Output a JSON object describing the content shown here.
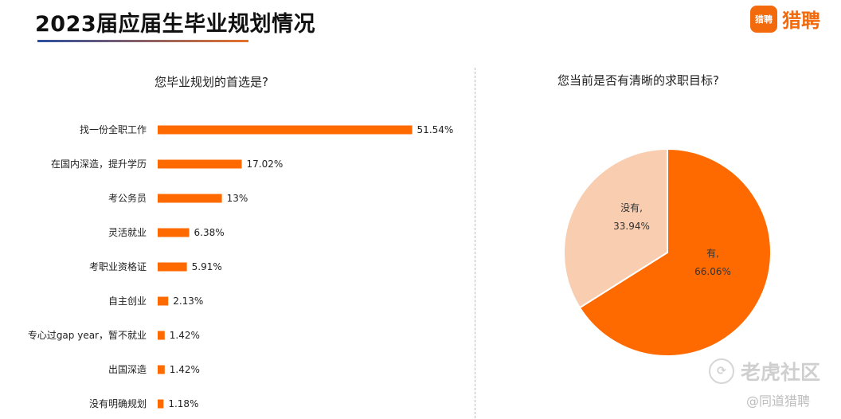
{
  "header": {
    "title": "2023届应届生毕业规划情况",
    "logo_badge": "猎聘",
    "logo_text": "猎聘"
  },
  "watermark": {
    "site": "老虎社区",
    "source": "@同道猎聘"
  },
  "colors": {
    "bar": "#ff6a00",
    "pie_yes": "#ff6a00",
    "pie_no": "#f8cdb0",
    "brand": "#f26a0b"
  },
  "chart_data": [
    {
      "type": "bar",
      "orientation": "horizontal",
      "title": "您毕业规划的首选是?",
      "categories": [
        "找一份全职工作",
        "在国内深造，提升学历",
        "考公务员",
        "灵活就业",
        "考职业资格证",
        "自主创业",
        "专心过gap year，暂不就业",
        "出国深造",
        "没有明确规划"
      ],
      "values": [
        51.54,
        17.02,
        13,
        6.38,
        5.91,
        2.13,
        1.42,
        1.42,
        1.18
      ],
      "value_labels": [
        "51.54%",
        "17.02%",
        "13%",
        "6.38%",
        "5.91%",
        "2.13%",
        "1.42%",
        "1.42%",
        "1.18%"
      ],
      "xlim": [
        0,
        60
      ],
      "grid": false
    },
    {
      "type": "pie",
      "title": "您当前是否有清晰的求职目标?",
      "slices": [
        {
          "name": "有",
          "value": 66.06,
          "label_name": "有,",
          "label_value": "66.06%"
        },
        {
          "name": "没有",
          "value": 33.94,
          "label_name": "没有,",
          "label_value": "33.94%"
        }
      ]
    }
  ]
}
